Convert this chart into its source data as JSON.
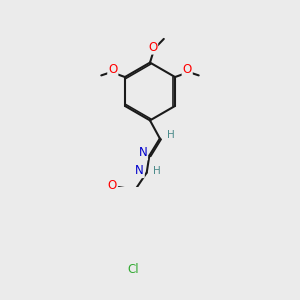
{
  "bg_color": "#ebebeb",
  "bond_color": "#1a1a1a",
  "bond_width": 1.5,
  "atom_colors": {
    "O": "#ff0000",
    "N": "#0000cc",
    "Cl": "#33aa33",
    "C": "#1a1a1a",
    "H": "#4a8a8a"
  },
  "font_size": 8.5,
  "fig_size": [
    3.0,
    3.0
  ],
  "dpi": 100
}
